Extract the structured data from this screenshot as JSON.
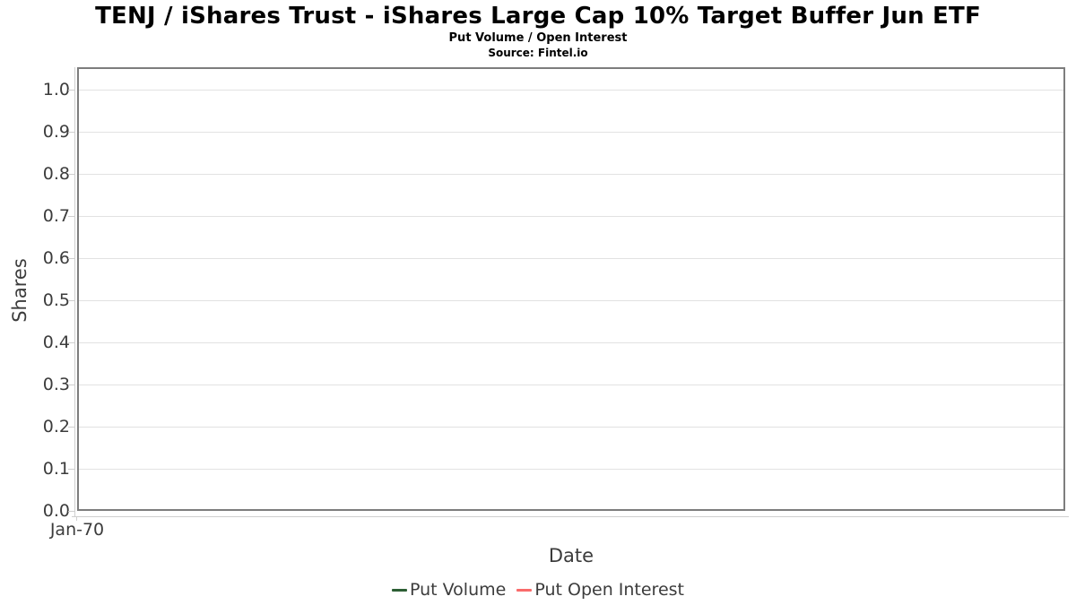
{
  "chart_data": {
    "type": "line",
    "title": "TENJ / iShares Trust - iShares Large Cap 10% Target Buffer Jun ETF",
    "subtitle": "Put Volume / Open Interest",
    "source": "Source: Fintel.io",
    "xlabel": "Date",
    "ylabel": "Shares",
    "x_ticks": [
      "Jan-70"
    ],
    "y_ticks": [
      "0.0",
      "0.1",
      "0.2",
      "0.3",
      "0.4",
      "0.5",
      "0.6",
      "0.7",
      "0.8",
      "0.9",
      "1.0"
    ],
    "ylim": [
      0.0,
      1.05
    ],
    "grid": true,
    "legend_position": "bottom",
    "series": [
      {
        "name": "Put Volume",
        "color": "#2d5f34",
        "x": [],
        "values": []
      },
      {
        "name": "Put Open Interest",
        "color": "#f96b6b",
        "x": [],
        "values": []
      }
    ]
  },
  "colors": {
    "background": "#ffffff",
    "title_text": "#000000",
    "axis_text": "#3c3c3c",
    "plot_border": "#7d7d7d",
    "gridline": "#e2e2e2",
    "axis_line": "#cfcfcf"
  }
}
